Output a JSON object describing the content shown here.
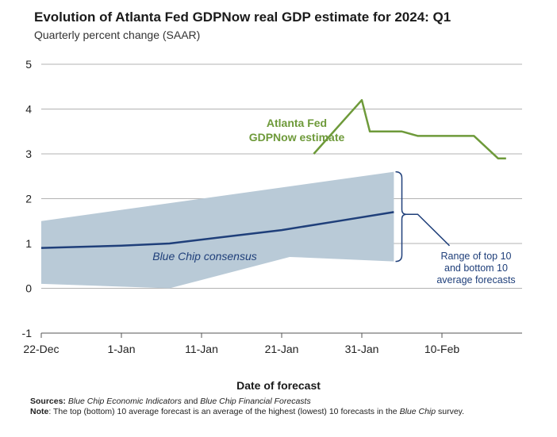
{
  "title": "Evolution of Atlanta Fed GDPNow real GDP estimate for 2024: Q1",
  "subtitle": "Quarterly percent change (SAAR)",
  "chart_data": {
    "type": "line",
    "xlabel": "Date of forecast",
    "ylabel": "",
    "ylim": [
      -1,
      5
    ],
    "yticks": [
      "-1",
      "0",
      "1",
      "2",
      "3",
      "4",
      "5"
    ],
    "xlim": [
      "2023-12-22",
      "2024-02-20"
    ],
    "xticks": [
      "22-Dec",
      "1-Jan",
      "11-Jan",
      "21-Jan",
      "31-Jan",
      "10-Feb"
    ],
    "grid": true,
    "series": [
      {
        "name": "Atlanta Fed GDPNow estimate",
        "color": "#6e9a3a",
        "points": [
          [
            "2024-01-25",
            3.0
          ],
          [
            "2024-01-31",
            4.2
          ],
          [
            "2024-02-01",
            3.5
          ],
          [
            "2024-02-05",
            3.5
          ],
          [
            "2024-02-07",
            3.4
          ],
          [
            "2024-02-14",
            3.4
          ],
          [
            "2024-02-17",
            2.9
          ],
          [
            "2024-02-18",
            2.9
          ]
        ]
      },
      {
        "name": "Blue Chip consensus",
        "color": "#1f3f7a",
        "points": [
          [
            "2023-12-22",
            0.9
          ],
          [
            "2024-01-01",
            0.95
          ],
          [
            "2024-01-07",
            1.0
          ],
          [
            "2024-01-14",
            1.15
          ],
          [
            "2024-01-21",
            1.3
          ],
          [
            "2024-01-28",
            1.5
          ],
          [
            "2024-02-04",
            1.7
          ]
        ]
      }
    ],
    "band": {
      "name": "Range of top 10 and bottom 10 average forecasts",
      "color": "#b9cad7",
      "upper": [
        [
          "2023-12-22",
          1.5
        ],
        [
          "2024-02-04",
          2.6
        ]
      ],
      "lower": [
        [
          "2023-12-22",
          0.1
        ],
        [
          "2024-01-07",
          0.0
        ],
        [
          "2024-01-22",
          0.7
        ],
        [
          "2024-02-04",
          0.6
        ]
      ]
    },
    "annotations": {
      "gdpnow": [
        "Atlanta Fed",
        "GDPNow estimate"
      ],
      "bluechip": "Blue Chip consensus",
      "range": [
        "Range of top 10",
        "and bottom 10",
        "average forecasts"
      ]
    }
  },
  "footer": {
    "sources_label": "Sources:",
    "sources_a": "Blue Chip Economic Indicators",
    "sources_and": " and ",
    "sources_b": "Blue Chip Financial Forecasts",
    "note_label": "Note",
    "note_text": ": The top (bottom) 10 average forecast is an average of the highest (lowest) 10 forecasts in the ",
    "note_italic": "Blue Chip",
    "note_end": " survey."
  }
}
